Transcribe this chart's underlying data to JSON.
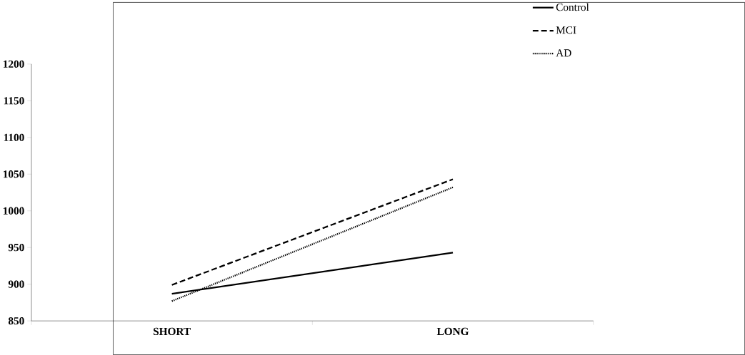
{
  "chart_data": {
    "type": "line",
    "categories": [
      "SHORT",
      "LONG"
    ],
    "series": [
      {
        "name": "Control",
        "color": "#000000",
        "line_style": "solid",
        "values": [
          887,
          943
        ]
      },
      {
        "name": "MCI",
        "color": "#000000",
        "line_style": "dashed",
        "values": [
          899,
          1043
        ]
      },
      {
        "name": "AD",
        "color": "#000000",
        "line_style": "dotted",
        "values": [
          877,
          1032
        ]
      }
    ],
    "ylim": [
      850,
      1200
    ],
    "yticks": [
      850,
      900,
      950,
      1000,
      1050,
      1100,
      1150,
      1200
    ],
    "grid": false,
    "legend": "top right",
    "marker": "none"
  }
}
